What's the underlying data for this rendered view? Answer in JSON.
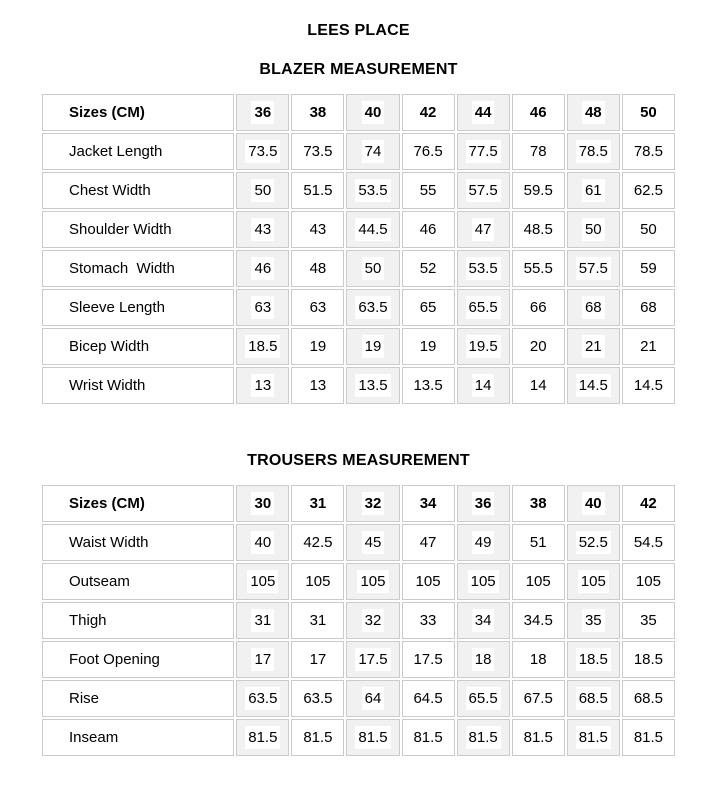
{
  "page": {
    "title": "LEES PLACE"
  },
  "colors": {
    "shaded_column_bg": "#f1f1f1",
    "cell_border": "#cbcbcb",
    "text": "#000000",
    "text_highlight_bg": "#ffffff"
  },
  "tables": {
    "blazer": {
      "title": "BLAZER MEASUREMENT",
      "header_label": "Sizes (CM)",
      "sizes": [
        "36",
        "38",
        "40",
        "42",
        "44",
        "46",
        "48",
        "50"
      ],
      "rows": [
        {
          "label": "Jacket Length",
          "values": [
            "73.5",
            "73.5",
            "74",
            "76.5",
            "77.5",
            "78",
            "78.5",
            "78.5"
          ]
        },
        {
          "label": "Chest Width",
          "values": [
            "50",
            "51.5",
            "53.5",
            "55",
            "57.5",
            "59.5",
            "61",
            "62.5"
          ]
        },
        {
          "label": "Shoulder Width",
          "values": [
            "43",
            "43",
            "44.5",
            "46",
            "47",
            "48.5",
            "50",
            "50"
          ]
        },
        {
          "label": "Stomach  Width",
          "values": [
            "46",
            "48",
            "50",
            "52",
            "53.5",
            "55.5",
            "57.5",
            "59"
          ]
        },
        {
          "label": "Sleeve Length",
          "values": [
            "63",
            "63",
            "63.5",
            "65",
            "65.5",
            "66",
            "68",
            "68"
          ]
        },
        {
          "label": "Bicep Width",
          "values": [
            "18.5",
            "19",
            "19",
            "19",
            "19.5",
            "20",
            "21",
            "21"
          ]
        },
        {
          "label": "Wrist Width",
          "values": [
            "13",
            "13",
            "13.5",
            "13.5",
            "14",
            "14",
            "14.5",
            "14.5"
          ]
        }
      ]
    },
    "trousers": {
      "title": "TROUSERS MEASUREMENT",
      "header_label": "Sizes (CM)",
      "sizes": [
        "30",
        "31",
        "32",
        "34",
        "36",
        "38",
        "40",
        "42"
      ],
      "rows": [
        {
          "label": "Waist Width",
          "values": [
            "40",
            "42.5",
            "45",
            "47",
            "49",
            "51",
            "52.5",
            "54.5"
          ]
        },
        {
          "label": "Outseam",
          "values": [
            "105",
            "105",
            "105",
            "105",
            "105",
            "105",
            "105",
            "105"
          ]
        },
        {
          "label": "Thigh",
          "values": [
            "31",
            "31",
            "32",
            "33",
            "34",
            "34.5",
            "35",
            "35"
          ]
        },
        {
          "label": "Foot Opening",
          "values": [
            "17",
            "17",
            "17.5",
            "17.5",
            "18",
            "18",
            "18.5",
            "18.5"
          ]
        },
        {
          "label": "Rise",
          "values": [
            "63.5",
            "63.5",
            "64",
            "64.5",
            "65.5",
            "67.5",
            "68.5",
            "68.5"
          ]
        },
        {
          "label": "Inseam",
          "values": [
            "81.5",
            "81.5",
            "81.5",
            "81.5",
            "81.5",
            "81.5",
            "81.5",
            "81.5"
          ]
        }
      ]
    }
  }
}
